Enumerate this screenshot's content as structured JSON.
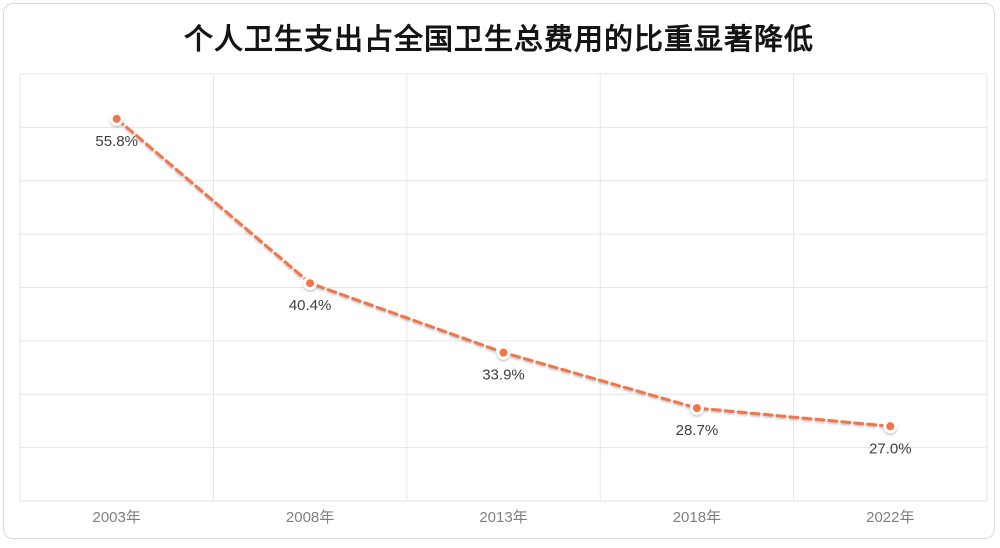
{
  "chart_data": {
    "type": "line",
    "title": "个人卫生支出占全国卫生总费用的比重显著降低",
    "categories": [
      "2003年",
      "2008年",
      "2013年",
      "2018年",
      "2022年"
    ],
    "values": [
      55.8,
      40.4,
      33.9,
      28.7,
      27.0
    ],
    "data_labels": [
      "55.8%",
      "40.4%",
      "33.9%",
      "28.7%",
      "27.0%"
    ],
    "xlabel": "",
    "ylabel": "",
    "ylim": [
      20,
      60
    ],
    "y_step": 5,
    "grid": true,
    "y_tick_labels_visible": false,
    "legend_position": "none",
    "line_style": "dashed",
    "marker": "circle",
    "colors": {
      "line": "#F2744A",
      "marker_fill": "#F2744A",
      "marker_ring": "#FFFFFF",
      "grid": "#E6E6E6",
      "data_label": "#404040",
      "axis_label": "#7F7F7F",
      "title": "#141414",
      "card_border": "#D9D9D9",
      "background": "#FFFFFF"
    }
  }
}
